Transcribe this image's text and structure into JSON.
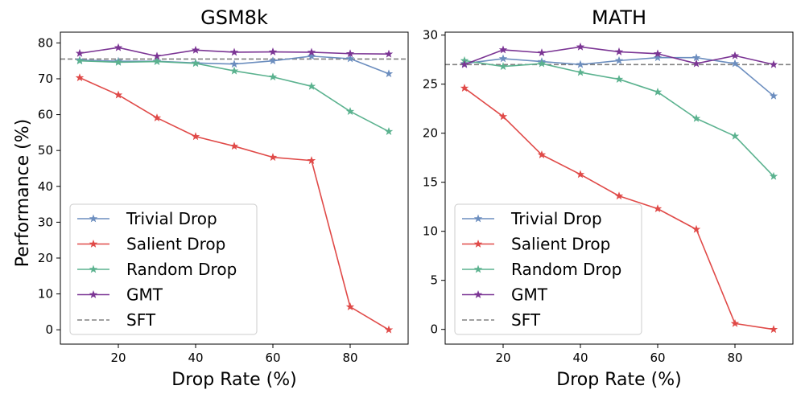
{
  "colors": {
    "trivial": "#6c8ebf",
    "salient": "#e04a48",
    "random": "#5bb28f",
    "gmt": "#7b3594",
    "sft": "#808080"
  },
  "shared": {
    "xlabel": "Drop Rate (%)",
    "ylabel": "Performance (%)"
  },
  "chart_data": [
    {
      "type": "line",
      "title": "GSM8k",
      "xlabel": "Drop Rate (%)",
      "ylabel": "Performance (%)",
      "xlim": [
        5,
        95
      ],
      "ylim": [
        -4,
        83
      ],
      "xticks": [
        20,
        40,
        60,
        80
      ],
      "yticks": [
        0,
        10,
        20,
        30,
        40,
        50,
        60,
        70,
        80
      ],
      "x": [
        10,
        20,
        30,
        40,
        50,
        60,
        70,
        80,
        90
      ],
      "series": [
        {
          "key": "trivial",
          "name": "Trivial Drop",
          "values": [
            75.2,
            74.9,
            74.9,
            74.4,
            74.1,
            75.0,
            76.3,
            75.6,
            71.4
          ]
        },
        {
          "key": "salient",
          "name": "Salient Drop",
          "values": [
            70.3,
            65.5,
            59.1,
            53.9,
            51.2,
            48.1,
            47.2,
            6.4,
            0.0
          ]
        },
        {
          "key": "random",
          "name": "Random Drop",
          "values": [
            75.0,
            74.6,
            74.8,
            74.3,
            72.2,
            70.5,
            67.9,
            60.9,
            55.3
          ]
        },
        {
          "key": "gmt",
          "name": "GMT",
          "values": [
            77.1,
            78.7,
            76.3,
            78.0,
            77.4,
            77.5,
            77.4,
            77.0,
            76.9
          ]
        }
      ],
      "baseline": {
        "key": "sft",
        "name": "SFT",
        "value": 75.5
      },
      "legend": "lower-left"
    },
    {
      "type": "line",
      "title": "MATH",
      "xlabel": "Drop Rate (%)",
      "ylabel": "",
      "xlim": [
        5,
        95
      ],
      "ylim": [
        -1.5,
        30.3
      ],
      "xticks": [
        20,
        40,
        60,
        80
      ],
      "yticks": [
        0,
        5,
        10,
        15,
        20,
        25,
        30
      ],
      "x": [
        10,
        20,
        30,
        40,
        50,
        60,
        70,
        80,
        90
      ],
      "series": [
        {
          "key": "trivial",
          "name": "Trivial Drop",
          "values": [
            27.1,
            27.6,
            27.3,
            27.0,
            27.4,
            27.7,
            27.7,
            27.1,
            23.8
          ]
        },
        {
          "key": "salient",
          "name": "Salient Drop",
          "values": [
            24.6,
            21.7,
            17.8,
            15.8,
            13.6,
            12.3,
            10.2,
            0.6,
            0.0
          ]
        },
        {
          "key": "random",
          "name": "Random Drop",
          "values": [
            27.4,
            26.8,
            27.1,
            26.2,
            25.5,
            24.2,
            21.5,
            19.7,
            15.6
          ]
        },
        {
          "key": "gmt",
          "name": "GMT",
          "values": [
            27.0,
            28.5,
            28.2,
            28.8,
            28.3,
            28.1,
            27.1,
            27.9,
            27.0
          ]
        }
      ],
      "baseline": {
        "key": "sft",
        "name": "SFT",
        "value": 27.0
      },
      "legend": "lower-left"
    }
  ]
}
